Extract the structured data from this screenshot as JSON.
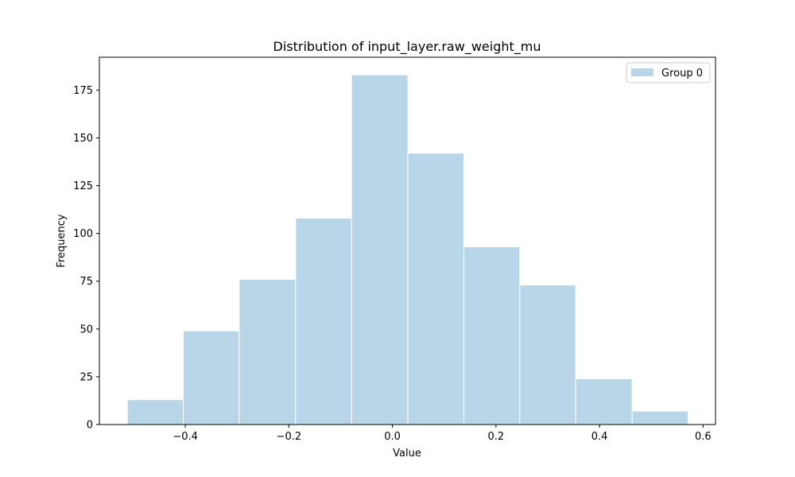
{
  "chart_data": {
    "type": "bar",
    "title": "Distribution of input_layer.raw_weight_mu",
    "xlabel": "Value",
    "ylabel": "Frequency",
    "xlim": [
      -0.566,
      0.624
    ],
    "ylim": [
      0,
      192.2
    ],
    "xticks": [
      -0.4,
      -0.2,
      0.0,
      0.2,
      0.4,
      0.6
    ],
    "xtick_labels": [
      "−0.4",
      "−0.2",
      "0.0",
      "0.2",
      "0.4",
      "0.6"
    ],
    "yticks": [
      0,
      25,
      50,
      75,
      100,
      125,
      150,
      175
    ],
    "ytick_labels": [
      "0",
      "25",
      "50",
      "75",
      "100",
      "125",
      "150",
      "175"
    ],
    "grid": false,
    "legend_position": "top-right",
    "series": [
      {
        "name": "Group 0",
        "color": "#b9d5e8",
        "bin_edges": [
          -0.512,
          -0.404,
          -0.296,
          -0.187,
          -0.079,
          0.03,
          0.138,
          0.246,
          0.354,
          0.463,
          0.571
        ],
        "counts": [
          13,
          49,
          76,
          108,
          183,
          142,
          93,
          73,
          24,
          7
        ]
      }
    ]
  }
}
